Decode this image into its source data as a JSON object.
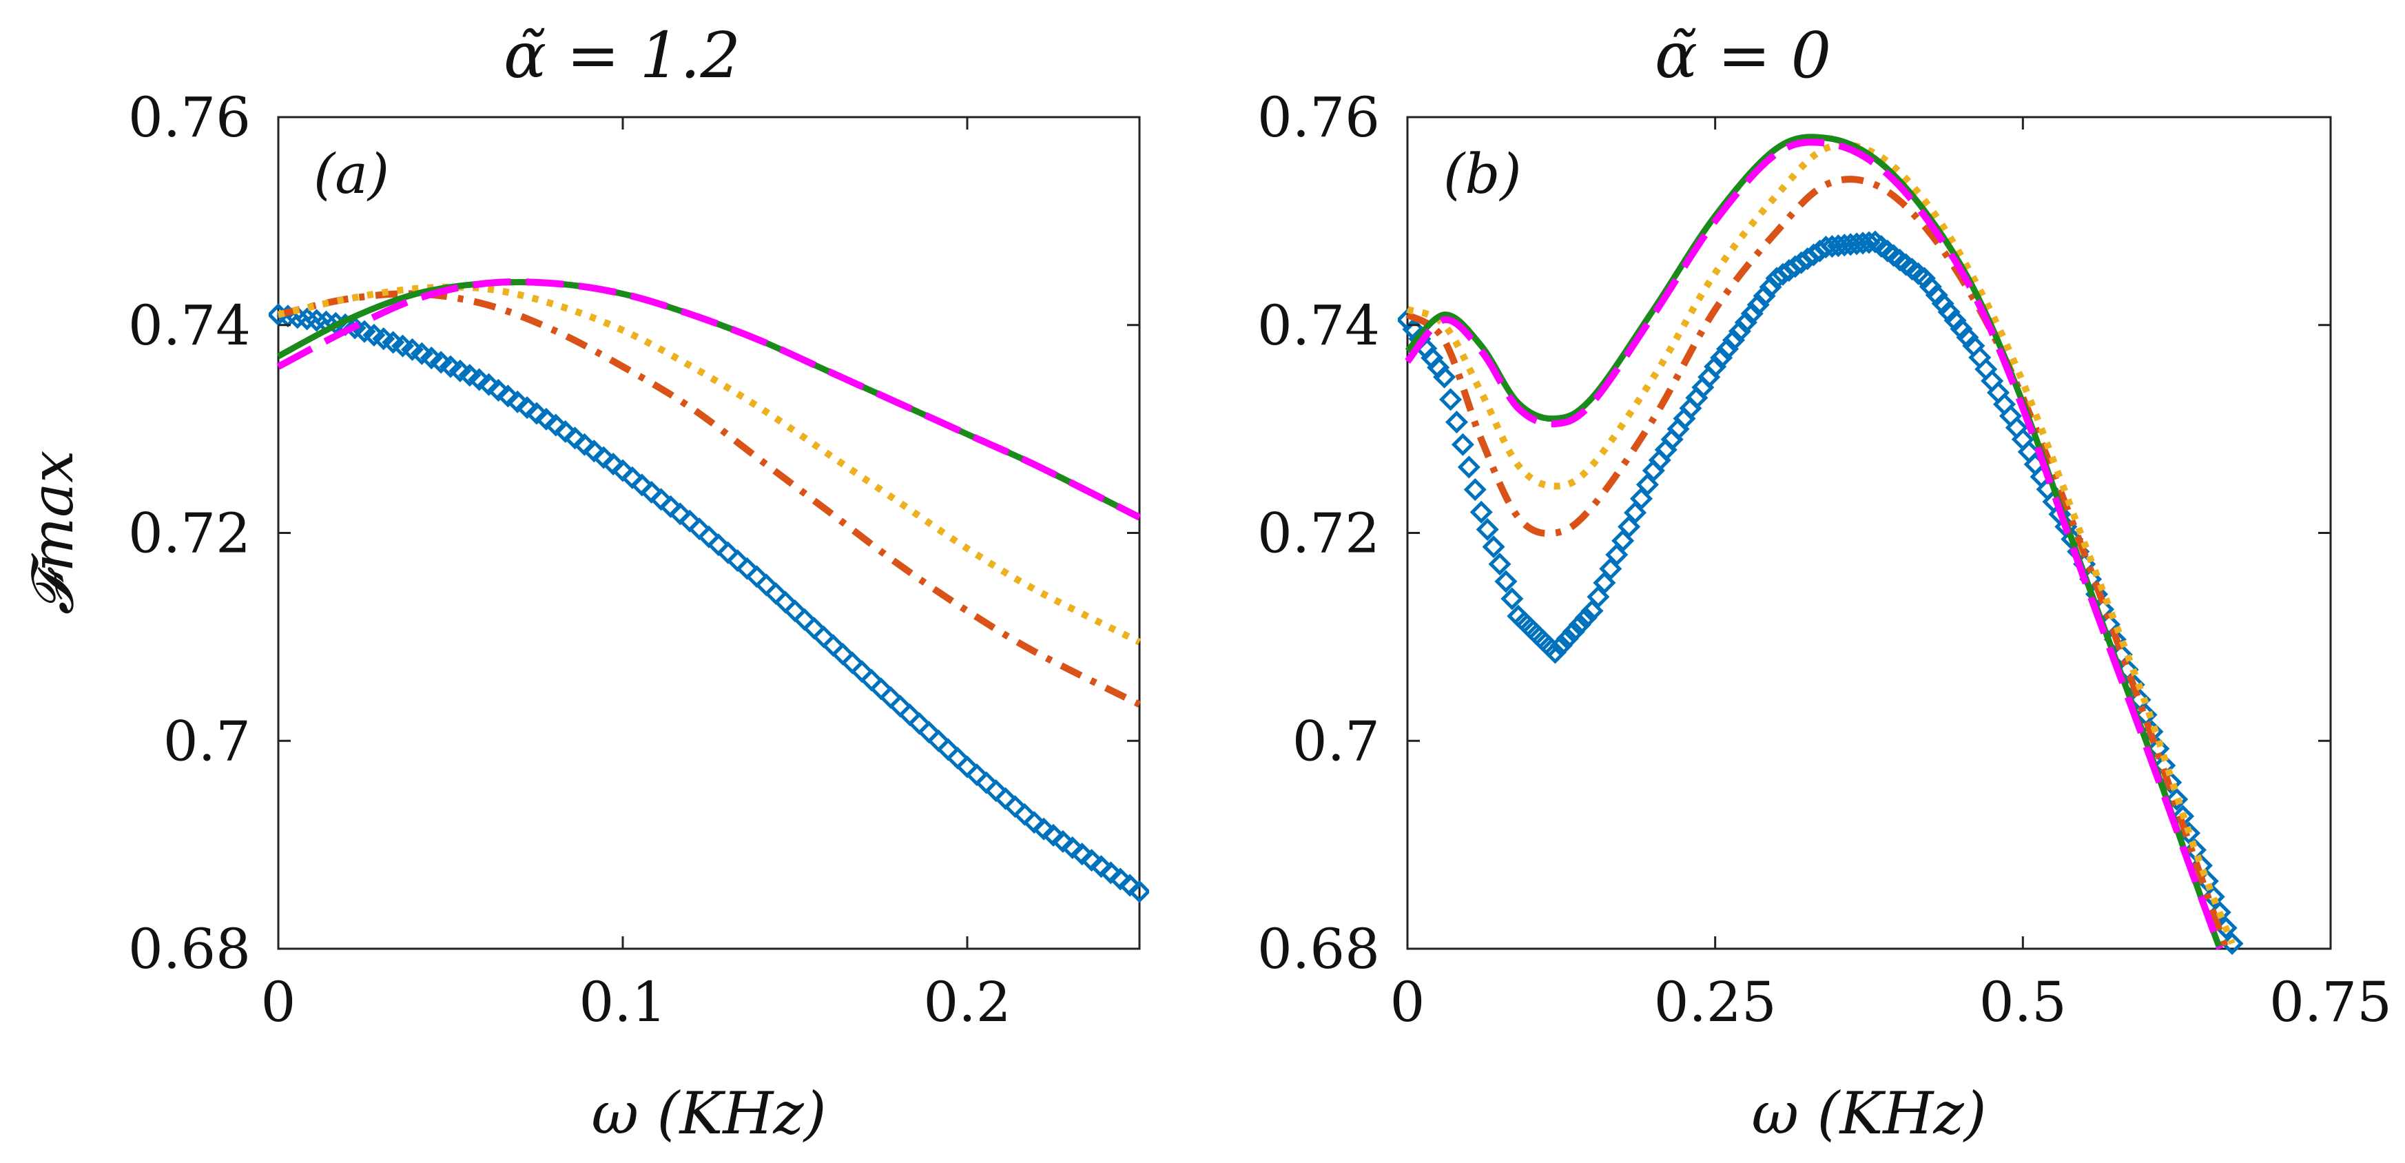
{
  "figure": {
    "ylabel": "𝓕max",
    "colors": {
      "blue": "#0072BD",
      "orange": "#D95319",
      "yellow": "#EDB120",
      "magenta": "#FF00FF",
      "green": "#1A8A1A"
    }
  },
  "chart_data": [
    {
      "type": "line",
      "panel_label": "(a)",
      "title": "α̃ = 1.2",
      "xlabel": "ω (KHz)",
      "ylabel": "𝓕max",
      "xlim": [
        0,
        0.25
      ],
      "ylim": [
        0.68,
        0.76
      ],
      "xticks": [
        0,
        0.1,
        0.2
      ],
      "xtick_labels": [
        "0",
        "0.1",
        "0.2"
      ],
      "yticks": [
        0.68,
        0.7,
        0.72,
        0.74,
        0.76
      ],
      "ytick_labels": [
        "0.68",
        "0.7",
        "0.72",
        "0.74",
        "0.76"
      ],
      "grid": false,
      "series": [
        {
          "name": "diamonds",
          "style": "diamond",
          "color": "#0072BD",
          "x": [
            0,
            0.02,
            0.04,
            0.06,
            0.08,
            0.1,
            0.12,
            0.14,
            0.16,
            0.18,
            0.2,
            0.22,
            0.25
          ],
          "y": [
            0.741,
            0.74,
            0.7375,
            0.7345,
            0.7305,
            0.726,
            0.721,
            0.7155,
            0.7095,
            0.7035,
            0.6975,
            0.692,
            0.6855
          ]
        },
        {
          "name": "dash-dot",
          "style": "dashdot",
          "color": "#D95319",
          "x": [
            0,
            0.02,
            0.04,
            0.06,
            0.08,
            0.1,
            0.12,
            0.14,
            0.16,
            0.18,
            0.2,
            0.22,
            0.25
          ],
          "y": [
            0.741,
            0.7425,
            0.743,
            0.742,
            0.7395,
            0.736,
            0.732,
            0.727,
            0.722,
            0.717,
            0.7125,
            0.7085,
            0.7035
          ]
        },
        {
          "name": "dotted",
          "style": "dotted",
          "color": "#EDB120",
          "x": [
            0,
            0.02,
            0.04,
            0.06,
            0.08,
            0.1,
            0.12,
            0.14,
            0.16,
            0.18,
            0.2,
            0.22,
            0.25
          ],
          "y": [
            0.741,
            0.7425,
            0.7435,
            0.7435,
            0.742,
            0.7395,
            0.736,
            0.732,
            0.7275,
            0.723,
            0.7185,
            0.7145,
            0.7095
          ]
        },
        {
          "name": "dashed",
          "style": "dashed",
          "color": "#FF00FF",
          "x": [
            0,
            0.02,
            0.04,
            0.06,
            0.08,
            0.1,
            0.12,
            0.14,
            0.16,
            0.18,
            0.2,
            0.22,
            0.25
          ],
          "y": [
            0.736,
            0.7395,
            0.7425,
            0.744,
            0.744,
            0.743,
            0.741,
            0.7385,
            0.7355,
            0.7325,
            0.7295,
            0.7265,
            0.7215
          ]
        },
        {
          "name": "solid",
          "style": "solid",
          "color": "#1A8A1A",
          "x": [
            0,
            0.02,
            0.04,
            0.06,
            0.08,
            0.1,
            0.12,
            0.14,
            0.16,
            0.18,
            0.2,
            0.22,
            0.25
          ],
          "y": [
            0.737,
            0.7405,
            0.743,
            0.744,
            0.744,
            0.743,
            0.741,
            0.7385,
            0.7355,
            0.7325,
            0.7295,
            0.7265,
            0.7215
          ]
        }
      ]
    },
    {
      "type": "line",
      "panel_label": "(b)",
      "title": "α̃ = 0",
      "xlabel": "ω (KHz)",
      "ylabel": "",
      "xlim": [
        0,
        0.75
      ],
      "ylim": [
        0.68,
        0.76
      ],
      "xticks": [
        0,
        0.25,
        0.5,
        0.75
      ],
      "xtick_labels": [
        "0",
        "0.25",
        "0.5",
        "0.75"
      ],
      "yticks": [
        0.68,
        0.7,
        0.72,
        0.74,
        0.76
      ],
      "ytick_labels": [
        "0.68",
        "0.7",
        "0.72",
        "0.74",
        "0.76"
      ],
      "grid": false,
      "series": [
        {
          "name": "diamonds",
          "style": "diamond",
          "color": "#0072BD",
          "x": [
            0,
            0.03,
            0.06,
            0.09,
            0.12,
            0.15,
            0.2,
            0.25,
            0.3,
            0.34,
            0.38,
            0.42,
            0.46,
            0.5,
            0.55,
            0.6,
            0.64,
            0.67
          ],
          "y": [
            0.7405,
            0.735,
            0.722,
            0.712,
            0.7085,
            0.7125,
            0.726,
            0.736,
            0.7445,
            0.7475,
            0.748,
            0.7445,
            0.738,
            0.729,
            0.717,
            0.7025,
            0.6895,
            0.6805
          ]
        },
        {
          "name": "dash-dot",
          "style": "dashdot",
          "color": "#D95319",
          "x": [
            0,
            0.03,
            0.06,
            0.09,
            0.12,
            0.15,
            0.2,
            0.25,
            0.3,
            0.34,
            0.38,
            0.42,
            0.46,
            0.5,
            0.55,
            0.6,
            0.64,
            0.665
          ],
          "y": [
            0.741,
            0.7385,
            0.729,
            0.7215,
            0.72,
            0.7225,
            0.731,
            0.7415,
            0.749,
            0.7535,
            0.7535,
            0.7495,
            0.7425,
            0.733,
            0.718,
            0.702,
            0.6885,
            0.68
          ]
        },
        {
          "name": "dotted",
          "style": "dotted",
          "color": "#EDB120",
          "x": [
            0,
            0.03,
            0.06,
            0.09,
            0.12,
            0.15,
            0.2,
            0.25,
            0.3,
            0.34,
            0.38,
            0.42,
            0.46,
            0.5,
            0.55,
            0.6,
            0.64,
            0.67
          ],
          "y": [
            0.7415,
            0.74,
            0.7335,
            0.7265,
            0.7245,
            0.7265,
            0.735,
            0.745,
            0.7525,
            0.757,
            0.7565,
            0.752,
            0.7445,
            0.7345,
            0.719,
            0.7035,
            0.6895,
            0.6805
          ]
        },
        {
          "name": "dashed",
          "style": "dashed",
          "color": "#FF00FF",
          "x": [
            0,
            0.03,
            0.06,
            0.09,
            0.12,
            0.15,
            0.2,
            0.25,
            0.3,
            0.34,
            0.38,
            0.42,
            0.46,
            0.5,
            0.55,
            0.6,
            0.64,
            0.66
          ],
          "y": [
            0.7365,
            0.7405,
            0.7375,
            0.732,
            0.7305,
            0.7325,
            0.741,
            0.75,
            0.7565,
            0.7575,
            0.7555,
            0.7505,
            0.743,
            0.732,
            0.7155,
            0.6995,
            0.6865,
            0.68
          ]
        },
        {
          "name": "solid",
          "style": "solid",
          "color": "#1A8A1A",
          "x": [
            0,
            0.03,
            0.06,
            0.09,
            0.12,
            0.15,
            0.2,
            0.25,
            0.3,
            0.34,
            0.38,
            0.42,
            0.46,
            0.5,
            0.55,
            0.6,
            0.64,
            0.66
          ],
          "y": [
            0.7375,
            0.741,
            0.738,
            0.7325,
            0.731,
            0.733,
            0.7415,
            0.7505,
            0.757,
            0.758,
            0.756,
            0.751,
            0.7435,
            0.7325,
            0.716,
            0.7,
            0.6865,
            0.68
          ]
        }
      ]
    }
  ]
}
